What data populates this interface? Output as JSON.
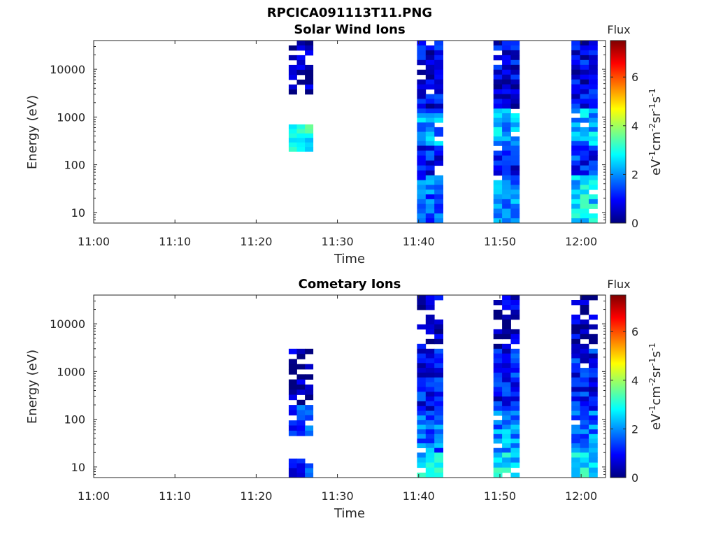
{
  "figure": {
    "title": "RPCICA091113T11.PNG"
  },
  "colormap": {
    "name": "jet",
    "stops": [
      "#00007f",
      "#0000ff",
      "#007fff",
      "#00ffff",
      "#7fff7f",
      "#ffff00",
      "#ff7f00",
      "#ff0000",
      "#7f0000"
    ]
  },
  "chart_data": [
    {
      "type": "heatmap",
      "title": "Solar Wind Ions",
      "xlabel": "Time",
      "ylabel": "Energy (eV)",
      "x_ticks": [
        "11:00",
        "11:10",
        "11:20",
        "11:30",
        "11:40",
        "11:50",
        "12:00"
      ],
      "x_range_minutes": [
        0,
        63
      ],
      "y_ticks": [
        "10",
        "100",
        "1000",
        "10000"
      ],
      "y_scale": "log",
      "y_range": [
        6,
        40000
      ],
      "colorbar": {
        "title": "Flux",
        "label": "eV-1cm-2sr-1s-1",
        "ticks": [
          "0",
          "2",
          "4",
          "6"
        ],
        "range": [
          0,
          7.5
        ]
      },
      "bursts": [
        {
          "t_start": 24.0,
          "t_end": 27.0,
          "segments": [
            {
              "emin": 3000,
              "emax": 45000,
              "level": 0.3,
              "sparse": true
            },
            {
              "emin": 190,
              "emax": 700,
              "level": 3.0
            }
          ]
        },
        {
          "t_start": 39.8,
          "t_end": 43.0,
          "segments": [
            {
              "emin": 1500,
              "emax": 45000,
              "level": 0.8
            },
            {
              "emin": 250,
              "emax": 1500,
              "level": 2.0
            },
            {
              "emin": 60,
              "emax": 250,
              "level": 1.0
            },
            {
              "emin": 6,
              "emax": 60,
              "level": 1.6
            }
          ]
        },
        {
          "t_start": 49.2,
          "t_end": 52.4,
          "segments": [
            {
              "emin": 1500,
              "emax": 45000,
              "level": 0.8
            },
            {
              "emin": 250,
              "emax": 1500,
              "level": 2.2
            },
            {
              "emin": 60,
              "emax": 250,
              "level": 1.0
            },
            {
              "emin": 6,
              "emax": 60,
              "level": 2.0
            }
          ]
        },
        {
          "t_start": 58.8,
          "t_end": 62.0,
          "segments": [
            {
              "emin": 1500,
              "emax": 45000,
              "level": 0.8
            },
            {
              "emin": 250,
              "emax": 1500,
              "level": 2.2
            },
            {
              "emin": 60,
              "emax": 250,
              "level": 1.2
            },
            {
              "emin": 6,
              "emax": 60,
              "level": 2.6
            }
          ]
        }
      ]
    },
    {
      "type": "heatmap",
      "title": "Cometary Ions",
      "xlabel": "Time",
      "ylabel": "Energy (eV)",
      "x_ticks": [
        "11:00",
        "11:10",
        "11:20",
        "11:30",
        "11:40",
        "11:50",
        "12:00"
      ],
      "x_range_minutes": [
        0,
        63
      ],
      "y_ticks": [
        "10",
        "100",
        "1000",
        "10000"
      ],
      "y_scale": "log",
      "y_range": [
        6,
        40000
      ],
      "colorbar": {
        "title": "Flux",
        "label": "eV-1cm-2sr-1s-1",
        "ticks": [
          "0",
          "2",
          "4",
          "6"
        ],
        "range": [
          0,
          7.5
        ]
      },
      "bursts": [
        {
          "t_start": 24.0,
          "t_end": 27.0,
          "segments": [
            {
              "emin": 200,
              "emax": 3000,
              "level": 0.3,
              "sparse": true
            },
            {
              "emin": 45,
              "emax": 200,
              "level": 1.3
            },
            {
              "emin": 6,
              "emax": 15,
              "level": 1.3
            }
          ]
        },
        {
          "t_start": 39.8,
          "t_end": 43.0,
          "segments": [
            {
              "emin": 3000,
              "emax": 45000,
              "level": 0.4,
              "sparse": true
            },
            {
              "emin": 150,
              "emax": 3000,
              "level": 1.0
            },
            {
              "emin": 20,
              "emax": 150,
              "level": 1.8
            },
            {
              "emin": 6,
              "emax": 20,
              "level": 2.6
            }
          ]
        },
        {
          "t_start": 49.2,
          "t_end": 52.4,
          "segments": [
            {
              "emin": 3000,
              "emax": 45000,
              "level": 0.4,
              "sparse": true
            },
            {
              "emin": 150,
              "emax": 3000,
              "level": 1.0
            },
            {
              "emin": 20,
              "emax": 150,
              "level": 2.0
            },
            {
              "emin": 6,
              "emax": 20,
              "level": 2.6
            }
          ]
        },
        {
          "t_start": 58.8,
          "t_end": 62.0,
          "segments": [
            {
              "emin": 3000,
              "emax": 45000,
              "level": 0.4,
              "sparse": true
            },
            {
              "emin": 150,
              "emax": 3000,
              "level": 1.0
            },
            {
              "emin": 20,
              "emax": 150,
              "level": 1.8
            },
            {
              "emin": 6,
              "emax": 20,
              "level": 2.6
            }
          ]
        }
      ]
    }
  ]
}
